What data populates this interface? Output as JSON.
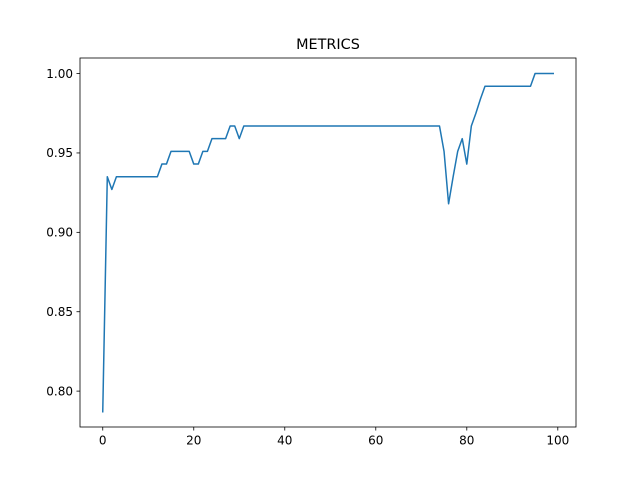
{
  "chart_data": {
    "type": "line",
    "title": "METRICS",
    "xlabel": "",
    "ylabel": "",
    "xlim": [
      -5,
      104
    ],
    "ylim": [
      0.7774,
      1.0098
    ],
    "xticks": [
      0,
      20,
      40,
      60,
      80,
      100
    ],
    "yticks": [
      0.8,
      0.85,
      0.9,
      0.95,
      1.0
    ],
    "xtick_labels": [
      "0",
      "20",
      "40",
      "60",
      "80",
      "100"
    ],
    "ytick_labels": [
      "0.80",
      "0.85",
      "0.90",
      "0.95",
      "1.00"
    ],
    "grid": false,
    "legend": "none",
    "series": [
      {
        "color": "#1f77b4",
        "x": [
          0,
          1,
          2,
          3,
          4,
          5,
          6,
          7,
          8,
          9,
          10,
          11,
          12,
          13,
          14,
          15,
          16,
          17,
          18,
          19,
          20,
          21,
          22,
          23,
          24,
          25,
          26,
          27,
          28,
          29,
          30,
          31,
          32,
          33,
          34,
          35,
          36,
          37,
          38,
          39,
          40,
          41,
          42,
          43,
          44,
          45,
          46,
          47,
          48,
          49,
          50,
          51,
          52,
          53,
          54,
          55,
          56,
          57,
          58,
          59,
          60,
          61,
          62,
          63,
          64,
          65,
          66,
          67,
          68,
          69,
          70,
          71,
          72,
          73,
          74,
          75,
          76,
          77,
          78,
          79,
          80,
          81,
          82,
          83,
          84,
          85,
          86,
          87,
          88,
          89,
          90,
          91,
          92,
          93,
          94,
          95,
          96,
          97,
          98,
          99
        ],
        "values": [
          0.787,
          0.935,
          0.927,
          0.935,
          0.935,
          0.935,
          0.935,
          0.935,
          0.935,
          0.935,
          0.935,
          0.935,
          0.935,
          0.943,
          0.943,
          0.951,
          0.951,
          0.951,
          0.951,
          0.951,
          0.943,
          0.943,
          0.951,
          0.951,
          0.959,
          0.959,
          0.959,
          0.959,
          0.967,
          0.967,
          0.959,
          0.967,
          0.967,
          0.967,
          0.967,
          0.967,
          0.967,
          0.967,
          0.967,
          0.967,
          0.967,
          0.967,
          0.967,
          0.967,
          0.967,
          0.967,
          0.967,
          0.967,
          0.967,
          0.967,
          0.967,
          0.967,
          0.967,
          0.967,
          0.967,
          0.967,
          0.967,
          0.967,
          0.967,
          0.967,
          0.967,
          0.967,
          0.967,
          0.967,
          0.967,
          0.967,
          0.967,
          0.967,
          0.967,
          0.967,
          0.967,
          0.967,
          0.967,
          0.967,
          0.967,
          0.951,
          0.918,
          0.935,
          0.951,
          0.959,
          0.943,
          0.967,
          0.975,
          0.984,
          0.992,
          0.992,
          0.992,
          0.992,
          0.992,
          0.992,
          0.992,
          0.992,
          0.992,
          0.992,
          0.992,
          1.0,
          1.0,
          1.0,
          1.0,
          1.0
        ]
      }
    ]
  }
}
